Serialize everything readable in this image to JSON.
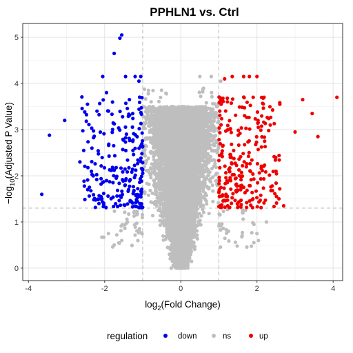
{
  "chart_data": {
    "type": "scatter",
    "title": "PPHLN1 vs. Ctrl",
    "xlabel": {
      "prefix": "log",
      "sub": "2",
      "suffix": "(Fold Change)"
    },
    "ylabel": {
      "prefix": "−log",
      "sub": "10",
      "suffix": "(Adjusted P Value)"
    },
    "xlim": [
      -4.15,
      4.25
    ],
    "ylim": [
      -0.27,
      5.3
    ],
    "x_ticks": [
      -4,
      -2,
      0,
      2,
      4
    ],
    "y_ticks": [
      0,
      1,
      2,
      3,
      4,
      5
    ],
    "grid": true,
    "fc_threshold": 1,
    "p_threshold": 1.3,
    "legend": {
      "title": "regulation",
      "position": "bottom"
    },
    "series": [
      {
        "name": "down",
        "color": "#0000ee",
        "n_points": 240,
        "points": [
          [
            -1.55,
            5.05
          ],
          [
            -1.6,
            4.98
          ],
          [
            -1.75,
            4.65
          ],
          [
            -2.05,
            4.15
          ],
          [
            -1.45,
            4.15
          ],
          [
            -1.2,
            4.15
          ],
          [
            -1.05,
            4.15
          ],
          [
            -1.1,
            4.05
          ],
          [
            -3.65,
            1.6
          ],
          [
            -3.45,
            2.88
          ],
          [
            -3.05,
            3.2
          ],
          [
            -2.65,
            2.3
          ],
          [
            -2.45,
            3.55
          ],
          [
            -2.55,
            2.55
          ],
          [
            -2.2,
            3.4
          ],
          [
            -2.3,
            2.0
          ],
          [
            -2.1,
            1.5
          ],
          [
            -1.95,
            3.8
          ],
          [
            -1.35,
            3.65
          ],
          [
            -2.4,
            1.75
          ],
          [
            -2.15,
            1.4
          ]
        ]
      },
      {
        "name": "ns",
        "color": "#bebebe",
        "n_points": 9000,
        "points": [
          [
            0.8,
            4.15
          ],
          [
            0.5,
            4.15
          ],
          [
            1.05,
            4.05
          ],
          [
            1.0,
            3.55
          ],
          [
            -0.85,
            3.85
          ],
          [
            2.0,
            0.75
          ],
          [
            2.25,
            1.0
          ],
          [
            1.7,
            1.25
          ],
          [
            -1.9,
            0.75
          ],
          [
            -1.4,
            1.0
          ],
          [
            -1.75,
            0.5
          ],
          [
            -0.25,
            0.0
          ],
          [
            0.15,
            0.02
          ]
        ]
      },
      {
        "name": "up",
        "color": "#ee0000",
        "n_points": 260,
        "points": [
          [
            4.1,
            3.7
          ],
          [
            3.2,
            3.65
          ],
          [
            3.45,
            3.35
          ],
          [
            3.0,
            2.95
          ],
          [
            3.6,
            2.85
          ],
          [
            2.7,
            1.35
          ],
          [
            1.8,
            4.15
          ],
          [
            2.0,
            4.15
          ],
          [
            1.35,
            4.15
          ],
          [
            1.65,
            4.15
          ],
          [
            1.15,
            4.1
          ],
          [
            2.35,
            3.1
          ],
          [
            2.6,
            3.55
          ],
          [
            2.2,
            2.75
          ],
          [
            2.5,
            2.1
          ],
          [
            1.9,
            3.7
          ],
          [
            1.45,
            1.95
          ],
          [
            1.3,
            2.4
          ]
        ]
      }
    ]
  }
}
